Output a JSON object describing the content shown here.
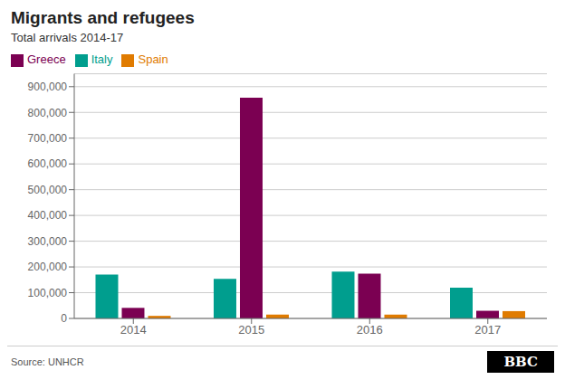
{
  "chart_data": {
    "type": "bar",
    "title": "Migrants and refugees",
    "subtitle": "Total arrivals 2014-17",
    "categories": [
      "2014",
      "2015",
      "2016",
      "2017"
    ],
    "series": [
      {
        "name": "Italy",
        "color": "#009e8e",
        "values": [
          170100,
          153842,
          181436,
          119369
        ]
      },
      {
        "name": "Greece",
        "color": "#7b0052",
        "values": [
          41038,
          856723,
          173450,
          29718
        ]
      },
      {
        "name": "Spain",
        "color": "#e07b00",
        "values": [
          10000,
          14985,
          14864,
          28419
        ]
      }
    ],
    "ylim": [
      0,
      950000
    ],
    "yticks": [
      0,
      {
        "value": 100000,
        "label": "100,000"
      },
      {
        "value": 200000,
        "label": "200,000"
      },
      {
        "value": 300000,
        "label": "300,000"
      },
      {
        "value": 400000,
        "label": "400,000"
      },
      {
        "value": 500000,
        "label": "500,000"
      },
      {
        "value": 600000,
        "label": "600,000"
      },
      {
        "value": 700000,
        "label": "700,000"
      },
      {
        "value": 800000,
        "label": "800,000"
      },
      {
        "value": 900000,
        "label": "900,000"
      }
    ],
    "grid": true,
    "legend": "upper left",
    "annotations": [
      "Source: UNHCR",
      "BBC"
    ]
  }
}
